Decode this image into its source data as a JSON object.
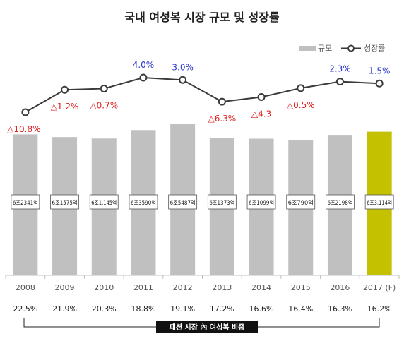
{
  "chart_data": {
    "type": "bar",
    "title": "국내 여성복 시장 규모 및 성장률",
    "categories": [
      "2008",
      "2009",
      "2010",
      "2011",
      "2012",
      "2013",
      "2014",
      "2015",
      "2016",
      "2017 (F)"
    ],
    "legend": {
      "position": "top-right",
      "items": [
        "규모",
        "성장률"
      ]
    },
    "series": [
      {
        "name": "규모",
        "kind": "bar",
        "unit": "억",
        "values": [
          62341,
          61575,
          61145,
          63590,
          65487,
          61373,
          61099,
          60790,
          62198,
          63114
        ],
        "labels": [
          "6조2341억",
          "6조1575억",
          "6조1,145억",
          "6조3590억",
          "6조5487억",
          "6조1373억",
          "6조1099억",
          "6조790억",
          "6조2198억",
          "6조3,114억"
        ],
        "colors": [
          "#c0c0c0",
          "#c0c0c0",
          "#c0c0c0",
          "#c0c0c0",
          "#c0c0c0",
          "#c0c0c0",
          "#c0c0c0",
          "#c0c0c0",
          "#c0c0c0",
          "#c3c100"
        ]
      },
      {
        "name": "성장률",
        "kind": "line",
        "unit": "%",
        "values": [
          -10.8,
          -1.2,
          -0.7,
          4.0,
          3.0,
          -6.3,
          -4.3,
          -0.5,
          2.3,
          1.5
        ],
        "labels": [
          "△10.8%",
          "△1.2%",
          "△0.7%",
          "4.0%",
          "3.0%",
          "△6.3%",
          "△4.3",
          "△0.5%",
          "2.3%",
          "1.5%"
        ]
      }
    ],
    "share_row": {
      "label": "패션 시장 內 여성복 비중",
      "values": [
        "22.5%",
        "21.9%",
        "20.3%",
        "18.8%",
        "19.1%",
        "17.2%",
        "16.6%",
        "16.4%",
        "16.3%",
        "16.2%"
      ]
    },
    "colors": {
      "negative": "#e02020",
      "positive": "#2a35c8",
      "bar": "#c0c0c0",
      "bar_highlight": "#c3c100",
      "line": "#3a3a3a"
    }
  }
}
